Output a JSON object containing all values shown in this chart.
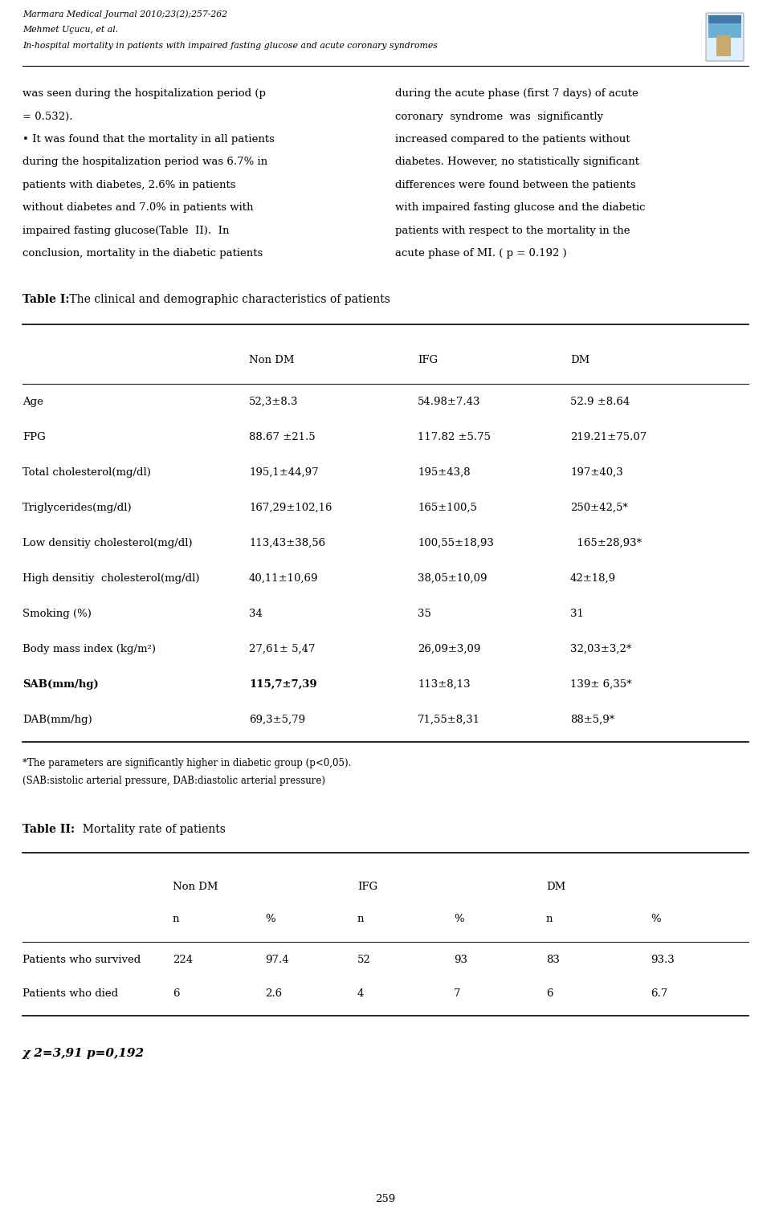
{
  "background_color": "#ffffff",
  "page_width": 9.6,
  "page_height": 15.07,
  "header": {
    "line1": "Marmara Medical Journal 2010;23(2);257-262",
    "line2": "Mehmet Uçucu, et al.",
    "line3": "In-hospital mortality in patients with impaired fasting glucose and acute coronary syndromes"
  },
  "body_left": "was seen during the hospitalization period (p\n= 0.532).\n• It was found that the mortality in all patients\nduring the hospitalization period was 6.7% in\npatients with diabetes, 2.6% in patients\nwithout diabetes and 7.0% in patients with\nimpaired fasting glucose(Table  II).  In\nconclusion, mortality in the diabetic patients",
  "body_right": "during the acute phase (first 7 days) of acute\ncoronary  syndrome  was  significantly\nincreased compared to the patients without\ndiabetes. However, no statistically significant\ndifferences were found between the patients\nwith impaired fasting glucose and the diabetic\npatients with respect to the mortality in the\nacute phase of MI. ( p = 0.192 )",
  "table1_title_bold": "Table I:",
  "table1_title_normal": " The clinical and demographic characteristics of patients",
  "table1_headers": [
    "",
    "Non DM",
    "IFG",
    "DM"
  ],
  "table1_rows": [
    {
      "cells": [
        "Age",
        "52,3±8.3",
        "54.98±7.43",
        "52.9 ±8.64"
      ],
      "bold_cols": []
    },
    {
      "cells": [
        "FPG",
        "88.67 ±21.5",
        "117.82 ±5.75",
        "219.21±75.07"
      ],
      "bold_cols": []
    },
    {
      "cells": [
        "Total cholesterol(mg/dl)",
        "195,1±44,97",
        "195±43,8",
        "197±40,3"
      ],
      "bold_cols": []
    },
    {
      "cells": [
        "Triglycerides(mg/dl)",
        "167,29±102,16",
        "165±100,5",
        "250±42,5*"
      ],
      "bold_cols": []
    },
    {
      "cells": [
        "Low densitiy cholesterol(mg/dl)",
        "113,43±38,56",
        "100,55±18,93",
        "  165±28,93*"
      ],
      "bold_cols": []
    },
    {
      "cells": [
        "High densitiy  cholesterol(mg/dl)",
        "40,11±10,69",
        "38,05±10,09",
        "42±18,9"
      ],
      "bold_cols": []
    },
    {
      "cells": [
        "Smoking (%)",
        "34",
        "35",
        "31"
      ],
      "bold_cols": []
    },
    {
      "cells": [
        "Body mass index (kg/m²)",
        "27,61± 5,47",
        "26,09±3,09",
        "32,03±3,2*"
      ],
      "bold_cols": []
    },
    {
      "cells": [
        "SAB(mm/hg)",
        "115,7±7,39",
        "113±8,13",
        "139± 6,35*"
      ],
      "bold_cols": [
        0,
        1
      ]
    },
    {
      "cells": [
        "DAB(mm/hg)",
        "69,3±5,79",
        "71,55±8,31",
        "88±5,9*"
      ],
      "bold_cols": []
    }
  ],
  "table1_footnote1": "*The parameters are significantly higher in diabetic group (p<0,05).",
  "table1_footnote2": "(SAB:sistolic arterial pressure, DAB:diastolic arterial pressure)",
  "table2_title_bold": "Table II:",
  "table2_title_normal": "  Mortality rate of patients",
  "table2_header_groups": [
    "Non DM",
    "IFG",
    "DM"
  ],
  "table2_subheaders": [
    "n",
    "%",
    "n",
    "%",
    "n",
    "%"
  ],
  "table2_rows": [
    [
      "Patients who survived",
      "224",
      "97.4",
      "52",
      "93",
      "83",
      "93.3"
    ],
    [
      "Patients who died",
      "6",
      "2.6",
      "4",
      "7",
      "6",
      "6.7"
    ]
  ],
  "table2_stat": "χ 2=3,91 p=0,192",
  "page_number": "259",
  "icon_color_top": "#5ba3c9",
  "icon_color_mid": "#b8d4e8",
  "icon_color_building": "#c8a96e"
}
